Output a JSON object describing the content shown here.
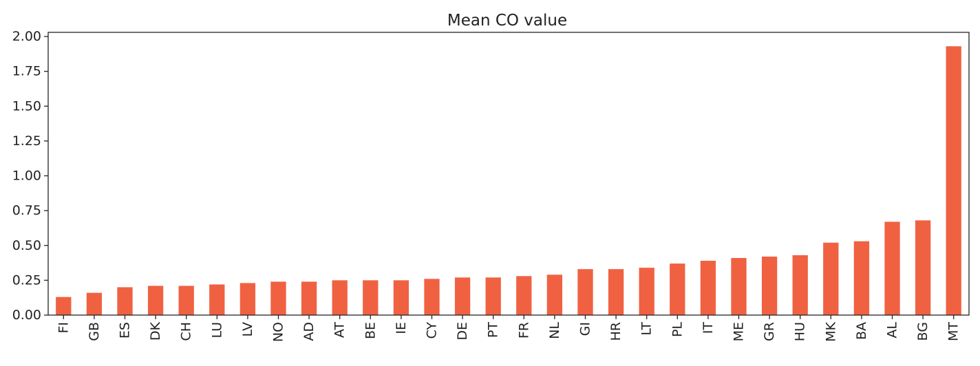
{
  "chart_data": {
    "type": "bar",
    "title": "Mean CO value",
    "xlabel": "",
    "ylabel": "",
    "categories": [
      "FI",
      "GB",
      "ES",
      "DK",
      "CH",
      "LU",
      "LV",
      "NO",
      "AD",
      "AT",
      "BE",
      "IE",
      "CY",
      "DE",
      "PT",
      "FR",
      "NL",
      "GI",
      "HR",
      "LT",
      "PL",
      "IT",
      "ME",
      "GR",
      "HU",
      "MK",
      "BA",
      "AL",
      "BG",
      "MT"
    ],
    "values": [
      0.13,
      0.16,
      0.2,
      0.21,
      0.21,
      0.22,
      0.23,
      0.24,
      0.24,
      0.25,
      0.25,
      0.25,
      0.26,
      0.27,
      0.27,
      0.28,
      0.29,
      0.33,
      0.33,
      0.34,
      0.37,
      0.39,
      0.41,
      0.42,
      0.43,
      0.52,
      0.53,
      0.67,
      0.68,
      1.93
    ],
    "ylim": [
      0,
      2.03
    ],
    "yticks": [
      0.0,
      0.25,
      0.5,
      0.75,
      1.0,
      1.25,
      1.5,
      1.75,
      2.0
    ],
    "ytick_labels": [
      "0.00",
      "0.25",
      "0.50",
      "0.75",
      "1.00",
      "1.25",
      "1.50",
      "1.75",
      "2.00"
    ],
    "grid": false,
    "legend": "none",
    "bar_color": "#f06142"
  }
}
